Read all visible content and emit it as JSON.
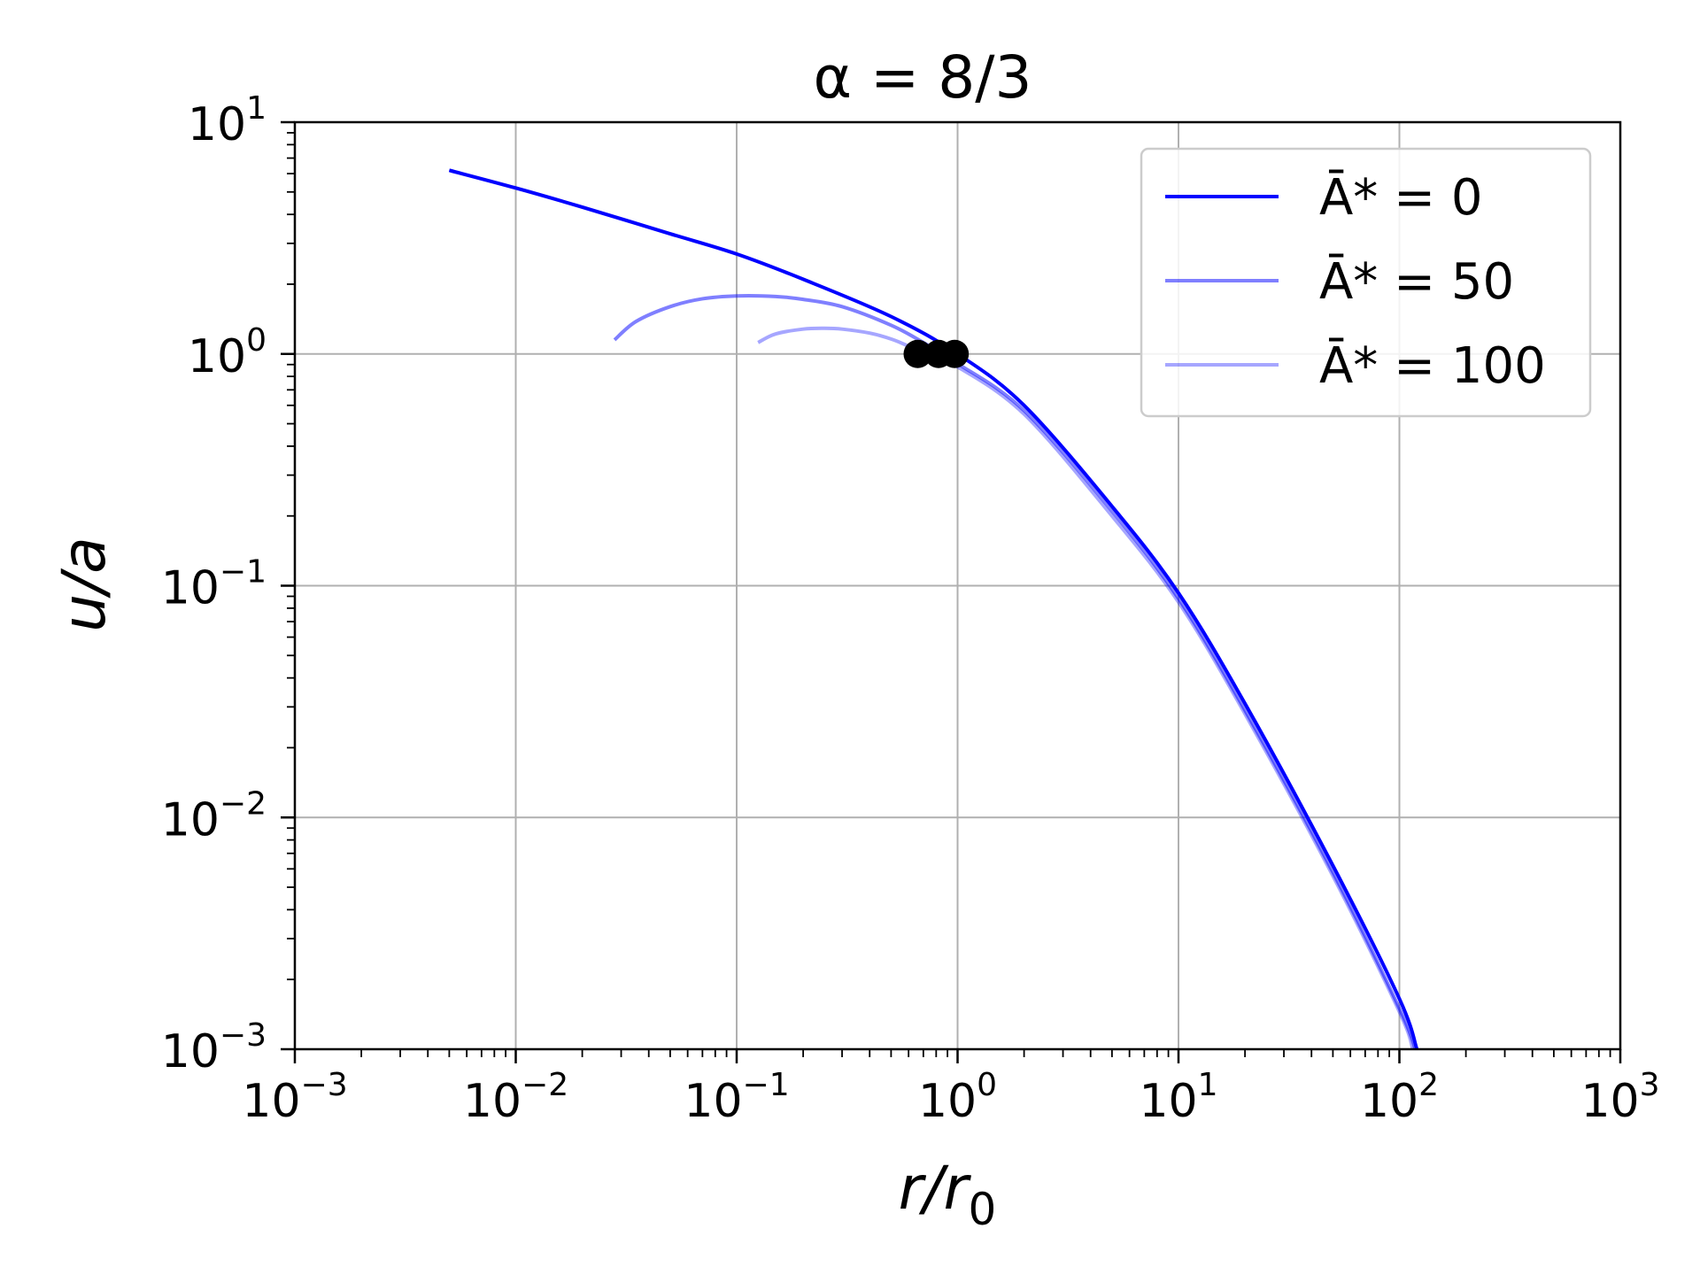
{
  "chart_data": {
    "type": "line",
    "title": "α = 8/3",
    "xlabel": "r/r0",
    "ylabel": "u/a",
    "xscale": "log",
    "yscale": "log",
    "xlim": [
      0.001,
      1000
    ],
    "ylim": [
      0.001,
      10
    ],
    "grid": true,
    "legend_position": "top-right",
    "x_ticks": [
      {
        "base": "10",
        "exp": "−3",
        "value": 0.001
      },
      {
        "base": "10",
        "exp": "−2",
        "value": 0.01
      },
      {
        "base": "10",
        "exp": "−1",
        "value": 0.1
      },
      {
        "base": "10",
        "exp": "0",
        "value": 1
      },
      {
        "base": "10",
        "exp": "1",
        "value": 10
      },
      {
        "base": "10",
        "exp": "2",
        "value": 100
      },
      {
        "base": "10",
        "exp": "3",
        "value": 1000
      }
    ],
    "y_ticks": [
      {
        "base": "10",
        "exp": "−3",
        "value": 0.001
      },
      {
        "base": "10",
        "exp": "−2",
        "value": 0.01
      },
      {
        "base": "10",
        "exp": "−1",
        "value": 0.1
      },
      {
        "base": "10",
        "exp": "0",
        "value": 1
      },
      {
        "base": "10",
        "exp": "1",
        "value": 10
      }
    ],
    "series": [
      {
        "name": "Ā* = 0",
        "color": "#0000ff",
        "opacity": 1.0,
        "x": [
          0.005,
          0.01,
          0.02,
          0.05,
          0.1,
          0.2,
          0.5,
          1,
          2,
          5,
          10,
          20,
          50,
          100,
          120
        ],
        "y": [
          6.2,
          5.2,
          4.3,
          3.3,
          2.7,
          2.1,
          1.45,
          1.0,
          0.6,
          0.22,
          0.093,
          0.031,
          0.0062,
          0.00165,
          0.001
        ]
      },
      {
        "name": "Ā* = 50",
        "color": "#0000ff",
        "opacity": 0.5,
        "x": [
          0.028,
          0.035,
          0.05,
          0.07,
          0.1,
          0.15,
          0.2,
          0.3,
          0.5,
          0.7,
          0.85,
          1,
          2,
          5,
          10,
          20,
          50,
          100,
          118
        ],
        "y": [
          1.15,
          1.38,
          1.6,
          1.73,
          1.78,
          1.77,
          1.72,
          1.6,
          1.33,
          1.12,
          1.0,
          0.91,
          0.57,
          0.21,
          0.088,
          0.029,
          0.0058,
          0.0015,
          0.001
        ]
      },
      {
        "name": "Ā* = 100",
        "color": "#0000ff",
        "opacity": 0.35,
        "x": [
          0.125,
          0.15,
          0.2,
          0.25,
          0.3,
          0.4,
          0.5,
          0.6,
          0.7,
          0.8,
          1,
          2,
          5,
          10,
          20,
          50,
          100,
          115
        ],
        "y": [
          1.12,
          1.22,
          1.28,
          1.29,
          1.28,
          1.23,
          1.16,
          1.08,
          1.0,
          0.94,
          0.88,
          0.55,
          0.2,
          0.085,
          0.028,
          0.0056,
          0.00145,
          0.001
        ]
      }
    ],
    "markers": {
      "color": "#000000",
      "points": [
        {
          "x": 0.66,
          "y": 1.0
        },
        {
          "x": 0.82,
          "y": 1.0
        },
        {
          "x": 0.97,
          "y": 1.0
        }
      ]
    },
    "legend": [
      {
        "label": "Ā* = 0"
      },
      {
        "label": "Ā* = 50"
      },
      {
        "label": "Ā* = 100"
      }
    ]
  }
}
